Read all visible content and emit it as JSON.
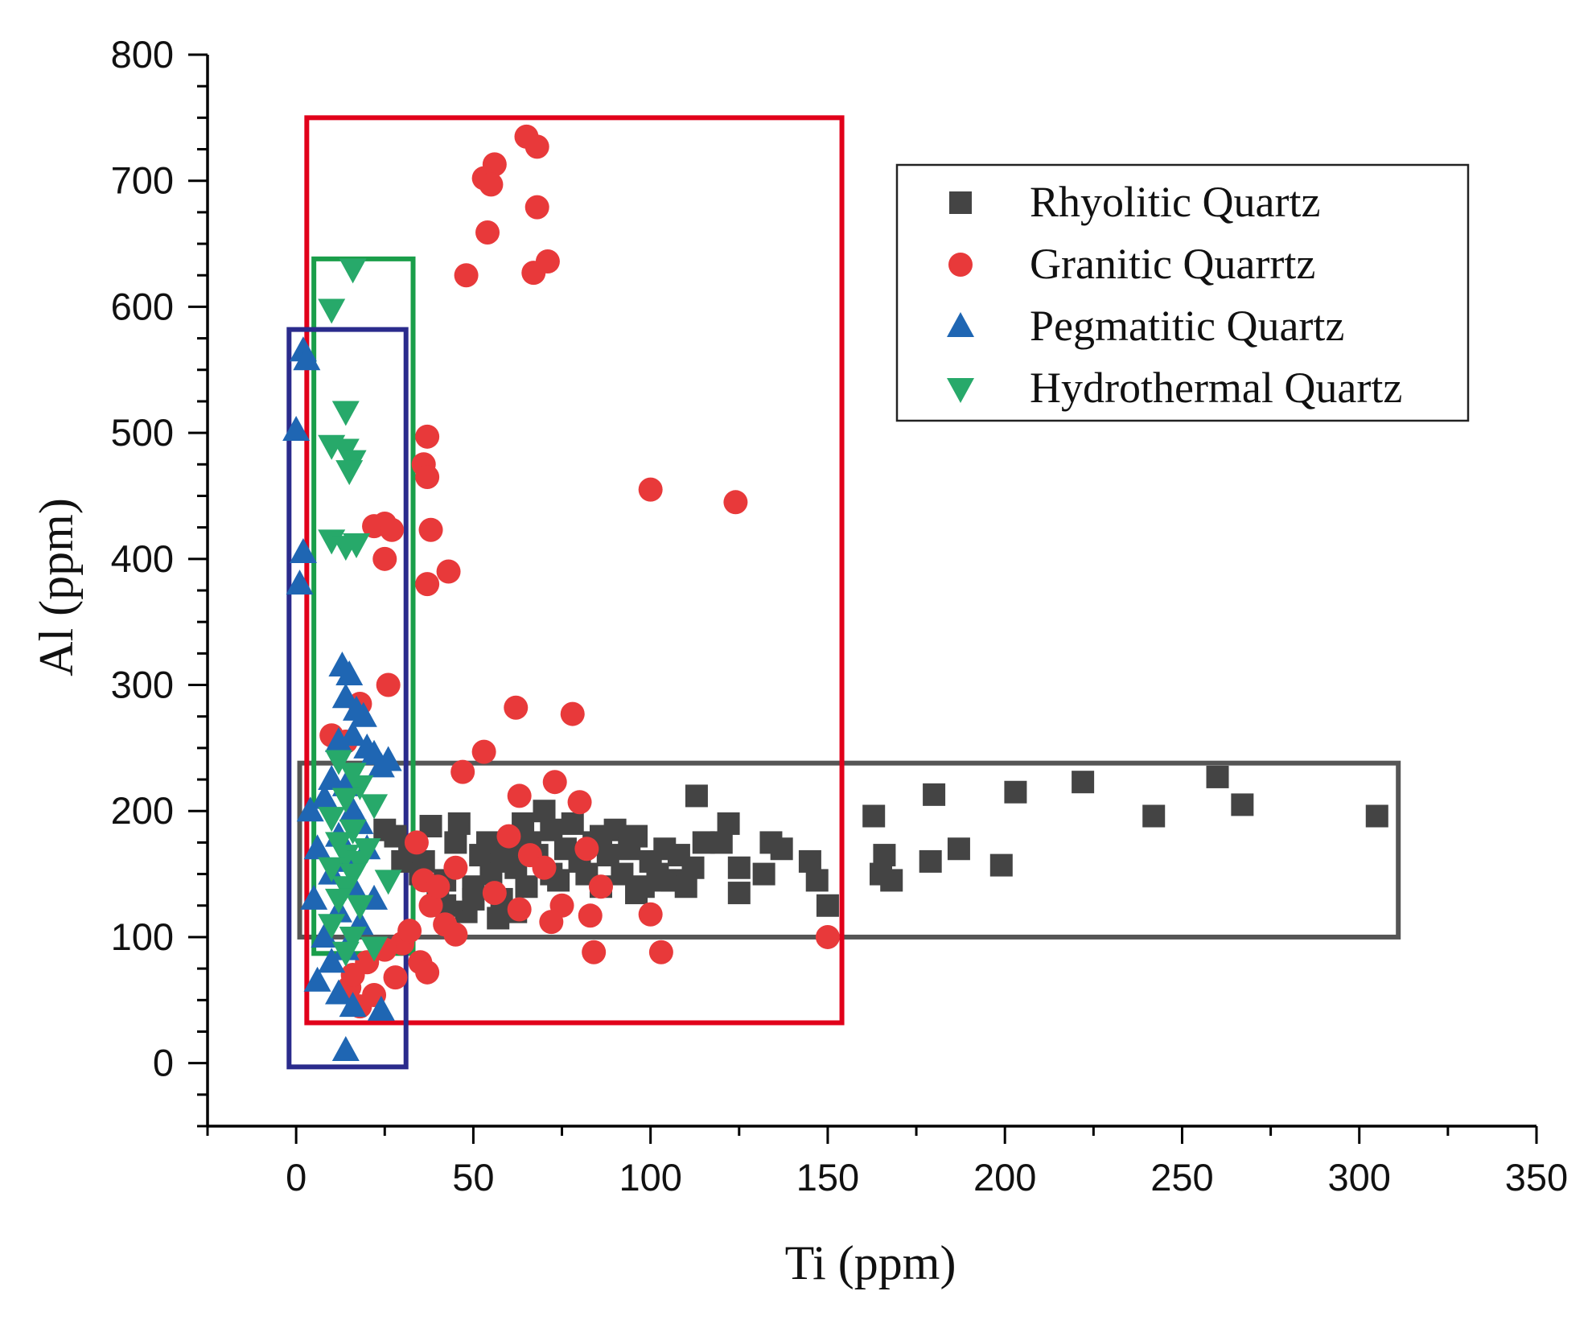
{
  "chart_data": {
    "type": "scatter",
    "title": "",
    "xlabel": "Ti (ppm)",
    "ylabel": "Al (ppm)",
    "xlim": [
      -25,
      350
    ],
    "ylim": [
      -50,
      800
    ],
    "xticks": [
      0,
      50,
      100,
      150,
      200,
      250,
      300,
      350
    ],
    "yticks": [
      0,
      100,
      200,
      300,
      400,
      500,
      600,
      700,
      800
    ],
    "grid": false,
    "legend_position": "top-right",
    "series": [
      {
        "name": "Rhyolitic Quartz",
        "marker": "square",
        "color": "#444444",
        "points": [
          [
            25,
            185
          ],
          [
            28,
            180
          ],
          [
            30,
            160
          ],
          [
            32,
            170
          ],
          [
            35,
            150
          ],
          [
            38,
            188
          ],
          [
            40,
            130
          ],
          [
            42,
            145
          ],
          [
            45,
            175
          ],
          [
            46,
            190
          ],
          [
            48,
            120
          ],
          [
            50,
            140
          ],
          [
            52,
            165
          ],
          [
            55,
            150
          ],
          [
            57,
            115
          ],
          [
            58,
            130
          ],
          [
            60,
            170
          ],
          [
            62,
            155
          ],
          [
            64,
            190
          ],
          [
            65,
            140
          ],
          [
            66,
            175
          ],
          [
            68,
            165
          ],
          [
            70,
            200
          ],
          [
            72,
            185
          ],
          [
            74,
            145
          ],
          [
            76,
            170
          ],
          [
            78,
            190
          ],
          [
            80,
            160
          ],
          [
            82,
            150
          ],
          [
            84,
            175
          ],
          [
            86,
            140
          ],
          [
            88,
            165
          ],
          [
            90,
            185
          ],
          [
            92,
            150
          ],
          [
            94,
            170
          ],
          [
            96,
            180
          ],
          [
            98,
            140
          ],
          [
            100,
            160
          ],
          [
            102,
            150
          ],
          [
            104,
            170
          ],
          [
            106,
            145
          ],
          [
            108,
            165
          ],
          [
            110,
            140
          ],
          [
            112,
            155
          ],
          [
            113,
            212
          ],
          [
            115,
            175
          ],
          [
            120,
            175
          ],
          [
            122,
            190
          ],
          [
            125,
            155
          ],
          [
            125,
            135
          ],
          [
            132,
            150
          ],
          [
            134,
            175
          ],
          [
            137,
            170
          ],
          [
            145,
            160
          ],
          [
            147,
            145
          ],
          [
            150,
            125
          ],
          [
            163,
            196
          ],
          [
            165,
            150
          ],
          [
            166,
            165
          ],
          [
            168,
            145
          ],
          [
            179,
            160
          ],
          [
            180,
            213
          ],
          [
            187,
            170
          ],
          [
            199,
            157
          ],
          [
            203,
            215
          ],
          [
            222,
            223
          ],
          [
            242,
            196
          ],
          [
            260,
            227
          ],
          [
            267,
            205
          ],
          [
            305,
            196
          ],
          [
            54,
            175
          ],
          [
            58,
            160
          ],
          [
            72,
            150
          ],
          [
            86,
            180
          ],
          [
            96,
            135
          ],
          [
            104,
            145
          ],
          [
            42,
            125
          ],
          [
            36,
            160
          ],
          [
            50,
            130
          ],
          [
            62,
            120
          ]
        ]
      },
      {
        "name": "Granitic Quarrtz",
        "marker": "circle",
        "color": "#e8393a",
        "points": [
          [
            65,
            735
          ],
          [
            68,
            727
          ],
          [
            56,
            713
          ],
          [
            53,
            702
          ],
          [
            55,
            697
          ],
          [
            68,
            679
          ],
          [
            54,
            659
          ],
          [
            71,
            636
          ],
          [
            67,
            627
          ],
          [
            48,
            625
          ],
          [
            37,
            497
          ],
          [
            36,
            475
          ],
          [
            37,
            465
          ],
          [
            100,
            455
          ],
          [
            124,
            445
          ],
          [
            38,
            423
          ],
          [
            25,
            428
          ],
          [
            22,
            426
          ],
          [
            27,
            423
          ],
          [
            25,
            400
          ],
          [
            43,
            390
          ],
          [
            37,
            380
          ],
          [
            26,
            300
          ],
          [
            62,
            282
          ],
          [
            78,
            277
          ],
          [
            18,
            285
          ],
          [
            10,
            260
          ],
          [
            14,
            255
          ],
          [
            53,
            247
          ],
          [
            47,
            231
          ],
          [
            73,
            223
          ],
          [
            63,
            212
          ],
          [
            80,
            207
          ],
          [
            60,
            180
          ],
          [
            66,
            165
          ],
          [
            70,
            155
          ],
          [
            82,
            170
          ],
          [
            86,
            140
          ],
          [
            75,
            125
          ],
          [
            72,
            112
          ],
          [
            34,
            175
          ],
          [
            36,
            145
          ],
          [
            38,
            125
          ],
          [
            42,
            110
          ],
          [
            45,
            102
          ],
          [
            30,
            95
          ],
          [
            35,
            80
          ],
          [
            37,
            72
          ],
          [
            28,
            68
          ],
          [
            22,
            54
          ],
          [
            18,
            45
          ],
          [
            15,
            60
          ],
          [
            84,
            88
          ],
          [
            103,
            88
          ],
          [
            100,
            118
          ],
          [
            150,
            100
          ],
          [
            83,
            117
          ],
          [
            63,
            122
          ],
          [
            56,
            135
          ],
          [
            45,
            155
          ],
          [
            40,
            140
          ],
          [
            32,
            105
          ],
          [
            20,
            80
          ],
          [
            25,
            90
          ],
          [
            16,
            70
          ]
        ]
      },
      {
        "name": "Pegmatitic Quartz",
        "marker": "triangle-up",
        "color": "#1f66b3",
        "points": [
          [
            2,
            565
          ],
          [
            3,
            558
          ],
          [
            0,
            502
          ],
          [
            2,
            405
          ],
          [
            1,
            380
          ],
          [
            13,
            315
          ],
          [
            15,
            308
          ],
          [
            14,
            290
          ],
          [
            17,
            280
          ],
          [
            19,
            275
          ],
          [
            16,
            260
          ],
          [
            12,
            255
          ],
          [
            20,
            250
          ],
          [
            22,
            245
          ],
          [
            24,
            235
          ],
          [
            10,
            225
          ],
          [
            14,
            220
          ],
          [
            8,
            210
          ],
          [
            16,
            200
          ],
          [
            18,
            190
          ],
          [
            12,
            180
          ],
          [
            20,
            170
          ],
          [
            14,
            160
          ],
          [
            10,
            150
          ],
          [
            16,
            140
          ],
          [
            22,
            130
          ],
          [
            12,
            120
          ],
          [
            18,
            110
          ],
          [
            8,
            100
          ],
          [
            14,
            90
          ],
          [
            10,
            80
          ],
          [
            6,
            65
          ],
          [
            12,
            55
          ],
          [
            16,
            45
          ],
          [
            24,
            42
          ],
          [
            14,
            10
          ],
          [
            4,
            200
          ],
          [
            6,
            170
          ],
          [
            26,
            240
          ],
          [
            5,
            130
          ]
        ]
      },
      {
        "name": "Hydrothermal Quartz",
        "marker": "triangle-down",
        "color": "#27a96a",
        "points": [
          [
            16,
            630
          ],
          [
            10,
            598
          ],
          [
            14,
            517
          ],
          [
            10,
            490
          ],
          [
            14,
            487
          ],
          [
            16,
            478
          ],
          [
            15,
            470
          ],
          [
            10,
            415
          ],
          [
            17,
            412
          ],
          [
            14,
            410
          ],
          [
            12,
            240
          ],
          [
            16,
            230
          ],
          [
            18,
            220
          ],
          [
            14,
            210
          ],
          [
            22,
            205
          ],
          [
            10,
            195
          ],
          [
            16,
            185
          ],
          [
            12,
            175
          ],
          [
            20,
            170
          ],
          [
            14,
            165
          ],
          [
            18,
            160
          ],
          [
            10,
            155
          ],
          [
            16,
            150
          ],
          [
            26,
            145
          ],
          [
            14,
            140
          ],
          [
            12,
            130
          ],
          [
            18,
            125
          ],
          [
            10,
            110
          ],
          [
            16,
            100
          ],
          [
            22,
            92
          ],
          [
            14,
            88
          ],
          [
            20,
            170
          ]
        ]
      }
    ],
    "annotations": [
      {
        "type": "rectangle",
        "name": "rhyolitic-field",
        "color": "#555555",
        "x": [
          1,
          311
        ],
        "y": [
          100,
          238
        ]
      },
      {
        "type": "rectangle",
        "name": "granitic-field",
        "color": "#e1001a",
        "x": [
          3,
          154
        ],
        "y": [
          32,
          750
        ]
      },
      {
        "type": "rectangle",
        "name": "hydrothermal-field",
        "color": "#1a9e4a",
        "x": [
          5,
          33
        ],
        "y": [
          87,
          638
        ]
      },
      {
        "type": "rectangle",
        "name": "pegmatitic-field",
        "color": "#2a2b8c",
        "x": [
          -2,
          31
        ],
        "y": [
          -3,
          582
        ]
      }
    ]
  }
}
